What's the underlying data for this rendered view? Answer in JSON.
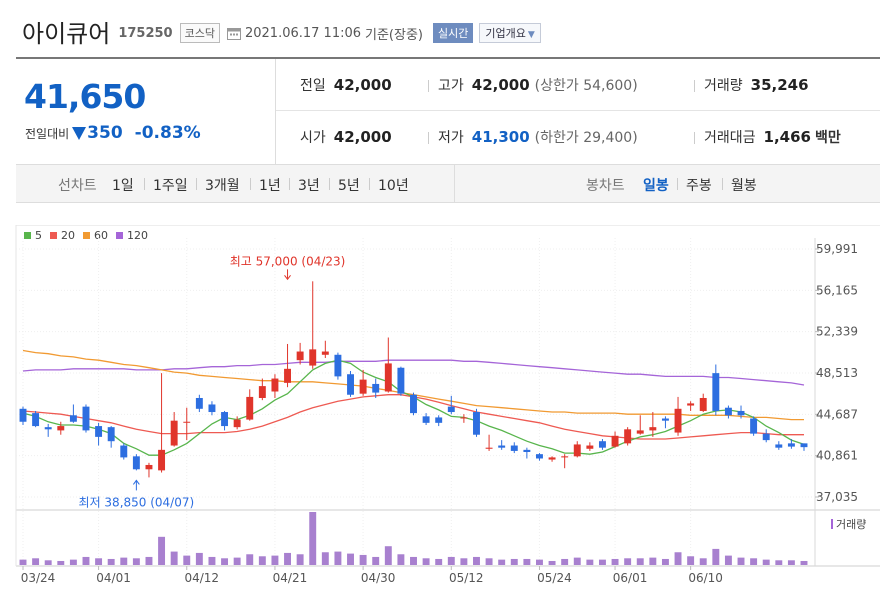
{
  "header": {
    "name": "아이큐어",
    "code": "175250",
    "market": "코스닥",
    "datetime": "2021.06.17 11:06",
    "basis": "기준(장중)",
    "live_label": "실시간",
    "corp_label": "기업개요"
  },
  "quote": {
    "price": "41,650",
    "change_label": "전일대비",
    "change_value": "350",
    "change_pct": "-0.83%",
    "direction": "down"
  },
  "stats": {
    "prev_close_label": "전일",
    "prev_close": "42,000",
    "high_label": "고가",
    "high": "42,000",
    "upper_limit": "(상한가 54,600)",
    "volume_label": "거래량",
    "volume": "35,246",
    "open_label": "시가",
    "open": "42,000",
    "low_label": "저가",
    "low": "41,300",
    "lower_limit": "(하한가 29,400)",
    "amount_label": "거래대금",
    "amount": "1,466",
    "amount_unit": "백만"
  },
  "period_bar": {
    "line_label": "선차트",
    "line_items": [
      "1일",
      "1주일",
      "3개월",
      "1년",
      "3년",
      "5년",
      "10년"
    ],
    "candle_label": "봉차트",
    "candle_items": [
      "일봉",
      "주봉",
      "월봉"
    ],
    "selected_candle": "일봉"
  },
  "colors": {
    "up": "#e0352b",
    "down": "#2d6ee0",
    "ma5": "#58b54c",
    "ma20": "#ee5a52",
    "ma60": "#f19a32",
    "ma120": "#a565d8"
  },
  "chart_data": {
    "type": "candlestick",
    "legend": [
      {
        "name": "5",
        "color": "#58b54c"
      },
      {
        "name": "20",
        "color": "#ee5a52"
      },
      {
        "name": "60",
        "color": "#f19a32"
      },
      {
        "name": "120",
        "color": "#a565d8"
      }
    ],
    "y_ticks": [
      "59,991",
      "56,165",
      "52,339",
      "48,513",
      "44,687",
      "40,861",
      "37,035"
    ],
    "ylim": [
      37035,
      59991
    ],
    "x_ticks": [
      {
        "i": 0,
        "label": "03/24"
      },
      {
        "i": 6,
        "label": "04/01"
      },
      {
        "i": 13,
        "label": "04/12"
      },
      {
        "i": 20,
        "label": "04/21"
      },
      {
        "i": 27,
        "label": "04/30"
      },
      {
        "i": 34,
        "label": "05/12"
      },
      {
        "i": 41,
        "label": "05/24"
      },
      {
        "i": 47,
        "label": "06/01"
      },
      {
        "i": 53,
        "label": "06/10"
      }
    ],
    "max_annotation": {
      "text": "최고 57,000 (04/23)",
      "i": 21,
      "value": 57000
    },
    "min_annotation": {
      "text": "최저 38,850 (04/07)",
      "i": 9,
      "value": 38850
    },
    "volume_label": "거래량",
    "candles": [
      {
        "o": 45200,
        "c": 44000,
        "h": 45400,
        "l": 43700,
        "v": 8
      },
      {
        "o": 44800,
        "c": 43600,
        "h": 45000,
        "l": 43500,
        "v": 10
      },
      {
        "o": 43500,
        "c": 43300,
        "h": 43800,
        "l": 42600,
        "v": 7
      },
      {
        "o": 43200,
        "c": 43600,
        "h": 44000,
        "l": 42800,
        "v": 6
      },
      {
        "o": 44600,
        "c": 44000,
        "h": 45600,
        "l": 43900,
        "v": 8
      },
      {
        "o": 45400,
        "c": 43200,
        "h": 45600,
        "l": 43000,
        "v": 12
      },
      {
        "o": 43600,
        "c": 42600,
        "h": 43900,
        "l": 41800,
        "v": 10
      },
      {
        "o": 43500,
        "c": 42200,
        "h": 43600,
        "l": 41600,
        "v": 9
      },
      {
        "o": 41800,
        "c": 40700,
        "h": 42000,
        "l": 40500,
        "v": 11
      },
      {
        "o": 40800,
        "c": 39600,
        "h": 41000,
        "l": 39500,
        "v": 10
      },
      {
        "o": 39600,
        "c": 40000,
        "h": 40200,
        "l": 38850,
        "v": 12
      },
      {
        "o": 39500,
        "c": 41400,
        "h": 48500,
        "l": 39300,
        "v": 42
      },
      {
        "o": 41800,
        "c": 44100,
        "h": 44900,
        "l": 41700,
        "v": 20
      },
      {
        "o": 44000,
        "c": 44000,
        "h": 45300,
        "l": 42300,
        "v": 14
      },
      {
        "o": 46200,
        "c": 45200,
        "h": 46500,
        "l": 44900,
        "v": 18
      },
      {
        "o": 45600,
        "c": 44900,
        "h": 45900,
        "l": 44600,
        "v": 12
      },
      {
        "o": 44900,
        "c": 43600,
        "h": 45000,
        "l": 43200,
        "v": 10
      },
      {
        "o": 43500,
        "c": 44200,
        "h": 44500,
        "l": 43300,
        "v": 11
      },
      {
        "o": 44200,
        "c": 46300,
        "h": 47000,
        "l": 44100,
        "v": 16
      },
      {
        "o": 46200,
        "c": 47300,
        "h": 48000,
        "l": 46000,
        "v": 13
      },
      {
        "o": 46800,
        "c": 48000,
        "h": 48400,
        "l": 46200,
        "v": 14
      },
      {
        "o": 47600,
        "c": 48900,
        "h": 51200,
        "l": 47200,
        "v": 18
      },
      {
        "o": 49700,
        "c": 50500,
        "h": 51300,
        "l": 49300,
        "v": 16
      },
      {
        "o": 49200,
        "c": 50700,
        "h": 57000,
        "l": 48900,
        "v": 79
      },
      {
        "o": 50200,
        "c": 50500,
        "h": 51500,
        "l": 49900,
        "v": 19
      },
      {
        "o": 50200,
        "c": 48200,
        "h": 50400,
        "l": 47900,
        "v": 20
      },
      {
        "o": 48400,
        "c": 46500,
        "h": 48700,
        "l": 46300,
        "v": 17
      },
      {
        "o": 46600,
        "c": 47900,
        "h": 48800,
        "l": 46400,
        "v": 15
      },
      {
        "o": 47500,
        "c": 46700,
        "h": 48000,
        "l": 46200,
        "v": 12
      },
      {
        "o": 46800,
        "c": 49400,
        "h": 51800,
        "l": 46700,
        "v": 28
      },
      {
        "o": 49000,
        "c": 46600,
        "h": 49100,
        "l": 46400,
        "v": 16
      },
      {
        "o": 46500,
        "c": 44800,
        "h": 46700,
        "l": 44600,
        "v": 12
      },
      {
        "o": 44500,
        "c": 43900,
        "h": 44800,
        "l": 43700,
        "v": 10
      },
      {
        "o": 44400,
        "c": 43900,
        "h": 44600,
        "l": 43600,
        "v": 9
      },
      {
        "o": 45400,
        "c": 44900,
        "h": 46400,
        "l": 44700,
        "v": 12
      },
      {
        "o": 44300,
        "c": 44400,
        "h": 44700,
        "l": 43900,
        "v": 10
      },
      {
        "o": 44900,
        "c": 42800,
        "h": 45200,
        "l": 42600,
        "v": 12
      },
      {
        "o": 41500,
        "c": 41600,
        "h": 42800,
        "l": 41300,
        "v": 10
      },
      {
        "o": 41800,
        "c": 41600,
        "h": 42300,
        "l": 41400,
        "v": 8
      },
      {
        "o": 41800,
        "c": 41300,
        "h": 42100,
        "l": 41100,
        "v": 9
      },
      {
        "o": 41400,
        "c": 41200,
        "h": 41600,
        "l": 40600,
        "v": 9
      },
      {
        "o": 41000,
        "c": 40600,
        "h": 41100,
        "l": 40400,
        "v": 8
      },
      {
        "o": 40500,
        "c": 40700,
        "h": 40800,
        "l": 40300,
        "v": 6
      },
      {
        "o": 40700,
        "c": 40800,
        "h": 41000,
        "l": 39700,
        "v": 9
      },
      {
        "o": 40800,
        "c": 41900,
        "h": 42200,
        "l": 40700,
        "v": 11
      },
      {
        "o": 41500,
        "c": 41800,
        "h": 42100,
        "l": 41300,
        "v": 8
      },
      {
        "o": 42200,
        "c": 41600,
        "h": 42400,
        "l": 41400,
        "v": 8
      },
      {
        "o": 41700,
        "c": 42700,
        "h": 43100,
        "l": 41600,
        "v": 9
      },
      {
        "o": 42000,
        "c": 43300,
        "h": 43500,
        "l": 41800,
        "v": 10
      },
      {
        "o": 42900,
        "c": 43200,
        "h": 44600,
        "l": 42800,
        "v": 10
      },
      {
        "o": 43200,
        "c": 43500,
        "h": 44900,
        "l": 42600,
        "v": 11
      },
      {
        "o": 44300,
        "c": 44100,
        "h": 44500,
        "l": 43400,
        "v": 9
      },
      {
        "o": 43000,
        "c": 45200,
        "h": 46300,
        "l": 42700,
        "v": 19
      },
      {
        "o": 45500,
        "c": 45700,
        "h": 45900,
        "l": 45000,
        "v": 13
      },
      {
        "o": 45000,
        "c": 46200,
        "h": 46600,
        "l": 44900,
        "v": 10
      },
      {
        "o": 48500,
        "c": 45000,
        "h": 49300,
        "l": 44600,
        "v": 24
      },
      {
        "o": 45300,
        "c": 44600,
        "h": 45500,
        "l": 44300,
        "v": 14
      },
      {
        "o": 45000,
        "c": 44600,
        "h": 45500,
        "l": 44300,
        "v": 11
      },
      {
        "o": 44300,
        "c": 42900,
        "h": 44500,
        "l": 42700,
        "v": 10
      },
      {
        "o": 42900,
        "c": 42300,
        "h": 43300,
        "l": 42100,
        "v": 8
      },
      {
        "o": 41900,
        "c": 41600,
        "h": 42200,
        "l": 41400,
        "v": 7
      },
      {
        "o": 42000,
        "c": 41700,
        "h": 42400,
        "l": 41500,
        "v": 7
      },
      {
        "o": 42000,
        "c": 41650,
        "h": 42000,
        "l": 41300,
        "v": 6
      }
    ],
    "ma5": [
      44800,
      44500,
      44000,
      43700,
      43700,
      43600,
      43300,
      42900,
      42000,
      41500,
      40900,
      40900,
      41400,
      42000,
      42900,
      43800,
      44400,
      44200,
      44600,
      45200,
      46000,
      46600,
      47700,
      48800,
      49400,
      49700,
      49400,
      48600,
      48100,
      47700,
      46800,
      46300,
      45600,
      45100,
      44500,
      44400,
      44100,
      43600,
      43200,
      42700,
      42200,
      41800,
      41500,
      41100,
      41100,
      41000,
      41200,
      41700,
      42200,
      42600,
      42800,
      43100,
      43600,
      44100,
      44700,
      45000,
      45100,
      44900,
      44400,
      43600,
      43000,
      42300,
      41900
    ],
    "ma20": [
      45000,
      44900,
      44800,
      44700,
      44500,
      44300,
      44100,
      43900,
      43600,
      43300,
      43100,
      42900,
      42900,
      42900,
      43000,
      43000,
      43000,
      43100,
      43300,
      43600,
      44000,
      44400,
      44900,
      45300,
      45600,
      45900,
      46100,
      46300,
      46400,
      46500,
      46500,
      46300,
      46100,
      45800,
      45500,
      45200,
      44900,
      44700,
      44500,
      44300,
      44100,
      43900,
      43600,
      43300,
      43100,
      42900,
      42700,
      42600,
      42500,
      42400,
      42400,
      42400,
      42500,
      42600,
      42700,
      42800,
      42900,
      43000,
      43000,
      42900,
      42800,
      42800,
      42800
    ],
    "ma60": [
      50600,
      50400,
      50300,
      50100,
      50000,
      49800,
      49700,
      49500,
      49300,
      49200,
      49000,
      48800,
      48600,
      48500,
      48300,
      48200,
      48100,
      48000,
      47900,
      47800,
      47800,
      47700,
      47700,
      47700,
      47600,
      47500,
      47400,
      47300,
      47100,
      46900,
      46700,
      46500,
      46300,
      46100,
      45900,
      45700,
      45500,
      45400,
      45300,
      45200,
      45100,
      45000,
      44900,
      44900,
      44800,
      44800,
      44800,
      44800,
      44700,
      44700,
      44700,
      44700,
      44700,
      44600,
      44600,
      44600,
      44600,
      44500,
      44400,
      44400,
      44300,
      44200,
      44200
    ],
    "ma120": [
      48700,
      48800,
      48800,
      48800,
      48900,
      48900,
      48900,
      48900,
      48900,
      48800,
      48800,
      48800,
      48900,
      48900,
      49000,
      49100,
      49100,
      49200,
      49200,
      49300,
      49300,
      49400,
      49500,
      49500,
      49500,
      49600,
      49600,
      49600,
      49600,
      49700,
      49700,
      49700,
      49700,
      49700,
      49700,
      49600,
      49600,
      49500,
      49400,
      49300,
      49200,
      49100,
      49000,
      48900,
      48800,
      48700,
      48600,
      48500,
      48400,
      48400,
      48300,
      48200,
      48200,
      48200,
      48200,
      48100,
      48100,
      48000,
      47900,
      47800,
      47700,
      47600,
      47400
    ]
  }
}
